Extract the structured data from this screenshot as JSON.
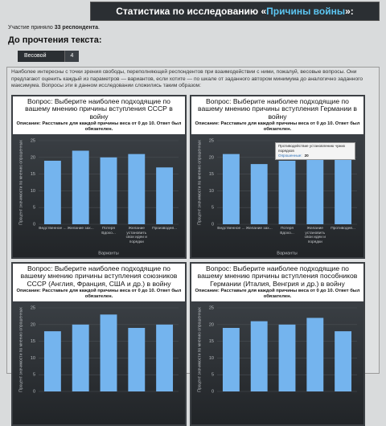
{
  "header": {
    "prefix": "Статистика по исследованию «",
    "highlight": "Причины войны",
    "suffix": "»:"
  },
  "participants": {
    "prefix": "Участие приняло ",
    "count": "33 респондента",
    "suffix": "."
  },
  "section_title": "До прочтения текста:",
  "table": {
    "rows": [
      [
        "Весовой",
        "4"
      ]
    ]
  },
  "intro": "Наиболее интересны с точки зрения свободы, переполняющей респондентов при взаимодействии с ними, пожалуй, весовые вопросы. Они предлагают оценить каждый из параметров — вариантов, если хотите — по шкале от заданного автором минимума до аналогично заданного максимума. Вопросы эти в данном исследовании сложились таким образом:",
  "chart_data": [
    {
      "type": "bar",
      "title": "Вопрос: Выберите наиболее подходящие по вашему мнению причины вступления СССР в войну",
      "subtitle": "Описание: Расставьте для каждой причины веса от 0 до 10. Ответ был обязателен.",
      "y_label": "Процент значимости по мнению опрошенных",
      "x_label": "Варианты",
      "categories": [
        "Ведственное ...",
        "Желание зах...",
        "Потеря Вдохо...",
        "Желание установить свои идеи и порядки",
        "Производей..."
      ],
      "values": [
        19,
        22,
        20,
        21,
        17
      ],
      "color": "#74b4ee",
      "ylim": [
        0,
        25
      ],
      "yticks": [
        0,
        5,
        10,
        15,
        20,
        25
      ],
      "grid": true
    },
    {
      "type": "bar",
      "title": "Вопрос: Выберите наиболее подходящие по вашему мнению причины вступления Германии в войну",
      "subtitle": "Описание: Расставьте для каждой причины веса от 0 до 10. Ответ был обязателен.",
      "y_label": "Процент значимости по мнению опрошенных",
      "x_label": "Варианты",
      "categories": [
        "Ведственное ...",
        "Желание зах...",
        "Потеря Вдохо...",
        "Желание установить свои идеи и порядки",
        "Противодей..."
      ],
      "values": [
        21,
        18,
        19,
        21,
        20
      ],
      "color": "#74b4ee",
      "ylim": [
        0,
        25
      ],
      "yticks": [
        0,
        5,
        10,
        15,
        20,
        25
      ],
      "grid": true,
      "tooltip": {
        "title": "Противодействие установлению чужих порядков",
        "label": "Опрошенные:",
        "value": "20"
      }
    },
    {
      "type": "bar",
      "title": "Вопрос: Выберите наиболее подходящие по вашему мнению причины вступления союзников СССР (Англия, Франция, США и др.) в войну",
      "subtitle": "Описание: Расставьте для каждой причины веса от 0 до 10. Ответ был обязателен.",
      "y_label": "Процент значимости по мнению опрошенных",
      "categories": [
        null,
        null,
        null,
        null,
        null
      ],
      "values": [
        18,
        20,
        23,
        19,
        20
      ],
      "color": "#74b4ee",
      "ylim": [
        0,
        25
      ],
      "yticks": [
        0,
        5,
        10,
        15,
        20,
        25
      ],
      "grid": true
    },
    {
      "type": "bar",
      "title": "Вопрос: Выберите наиболее подходящие по вашему мнению причины вступления пособников Германии (Италия, Венгрия и др.) в войну",
      "subtitle": "Описание: Расставьте для каждой причины веса от 0 до 10. Ответ был обязателен.",
      "y_label": "Процент значимости по мнению опрошенных",
      "categories": [
        null,
        null,
        null,
        null,
        null
      ],
      "values": [
        19,
        21,
        20,
        22,
        18
      ],
      "color": "#74b4ee",
      "ylim": [
        0,
        25
      ],
      "yticks": [
        0,
        5,
        10,
        15,
        20,
        25
      ],
      "grid": true
    }
  ]
}
